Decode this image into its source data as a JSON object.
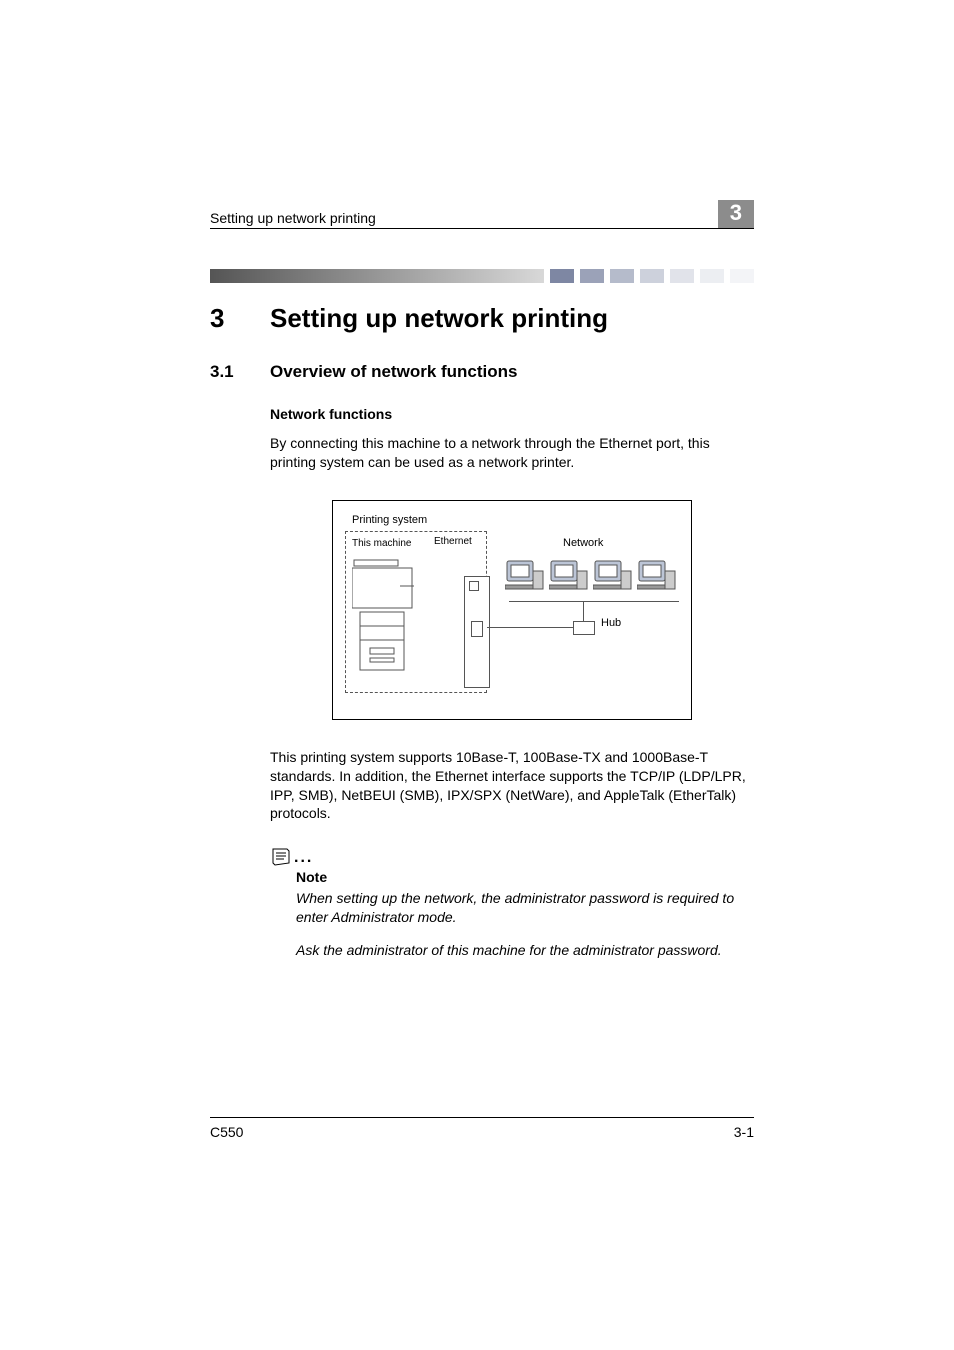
{
  "header": {
    "running_title": "Setting up network printing",
    "chapter_number": "3"
  },
  "stripe": {
    "segment_colors": [
      "#7e87a3",
      "#9ba2b8",
      "#b5bbcb",
      "#cdd1dc",
      "#e1e3ea",
      "#eceef2",
      "#f3f4f7"
    ]
  },
  "chapter": {
    "number": "3",
    "title": "Setting up network printing"
  },
  "section": {
    "number": "3.1",
    "title": "Overview of network functions"
  },
  "subsection": {
    "title": "Network functions"
  },
  "body": {
    "p1": "By connecting this machine to a network through the Ethernet port, this printing system can be used as a network printer.",
    "p2": "This printing system supports 10Base-T, 100Base-TX and 1000Base-T standards. In addition, the Ethernet interface supports the TCP/IP (LDP/LPR, IPP, SMB), NetBEUI (SMB), IPX/SPX (NetWare), and AppleTalk (EtherTalk) protocols."
  },
  "diagram": {
    "printing_system_label": "Printing system",
    "this_machine_label": "This machine",
    "ethernet_label": "Ethernet",
    "network_label": "Network",
    "hub_label": "Hub"
  },
  "note": {
    "heading": "Note",
    "body1": "When setting up the network, the administrator password is required to enter Administrator mode.",
    "body2": "Ask the administrator of this machine for the administrator password."
  },
  "footer": {
    "model": "C550",
    "page": "3-1"
  }
}
